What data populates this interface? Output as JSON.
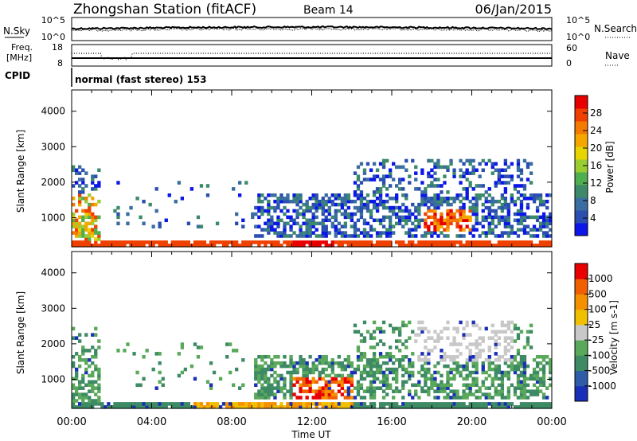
{
  "header": {
    "station": "Zhongshan Station (fitACF)",
    "beam": "Beam 14",
    "date": "06/Jan/2015"
  },
  "top_strip": {
    "nsky_label": "N.Sky",
    "nsky_ticks": [
      "10^5",
      "10^0"
    ],
    "nsearch_label": "N.Search",
    "nsearch_ticks": [
      "10^5",
      "10^0"
    ],
    "freq_label": "Freq.",
    "freq_unit": "[MHz]",
    "freq_ticks": [
      "18",
      "8"
    ],
    "nave_label": "Nave",
    "nave_ticks": [
      "60",
      "0"
    ],
    "cpid_label": "CPID",
    "cpid_value": "normal (fast stereo) 153"
  },
  "time_axis": {
    "label": "Time UT",
    "ticks": [
      "00:00",
      "04:00",
      "08:00",
      "12:00",
      "16:00",
      "20:00",
      "00:00"
    ]
  },
  "chart_data": [
    {
      "type": "heatmap",
      "name": "power-panel",
      "ylabel": "Slant Range [km]",
      "yticks": [
        1000,
        2000,
        3000,
        4000
      ],
      "ylim": [
        180,
        4600
      ],
      "xlim_hours": [
        0,
        24
      ],
      "colorbar": {
        "label": "Power [dB]",
        "ticks": [
          "4",
          "8",
          "12",
          "16",
          "20",
          "24",
          "28"
        ],
        "colors": [
          "#0b16e8",
          "#2b4fb0",
          "#3a6ea0",
          "#3c8a6a",
          "#4fae4f",
          "#9acd32",
          "#e8d400",
          "#f5a700",
          "#f47a00",
          "#ef4000",
          "#e80000"
        ]
      }
    },
    {
      "type": "heatmap",
      "name": "velocity-panel",
      "ylabel": "Slant Range [km]",
      "yticks": [
        1000,
        2000,
        3000,
        4000
      ],
      "ylim": [
        180,
        4600
      ],
      "xlim_hours": [
        0,
        24
      ],
      "colorbar": {
        "label": "Velocity [m s-1]",
        "ticks": [
          "1000",
          "500",
          "100",
          "25",
          "-25",
          "-100",
          "-500",
          "-1000"
        ],
        "colors": [
          "#1a2fb8",
          "#2e5ca8",
          "#3d8a64",
          "#5aa85a",
          "#c8c8c8",
          "#f0c000",
          "#f59000",
          "#f06000",
          "#e80000"
        ]
      }
    }
  ],
  "colors": {
    "ground_scatter": "#808080"
  }
}
